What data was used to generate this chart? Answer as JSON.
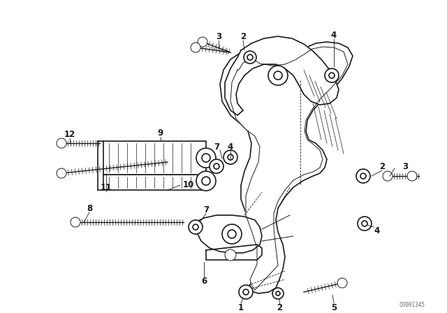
{
  "bg_color": "#ffffff",
  "line_color": "#1a1a1a",
  "fig_width": 6.4,
  "fig_height": 4.48,
  "dpi": 100,
  "watermark": "C0001345",
  "label_fs": 8.5
}
